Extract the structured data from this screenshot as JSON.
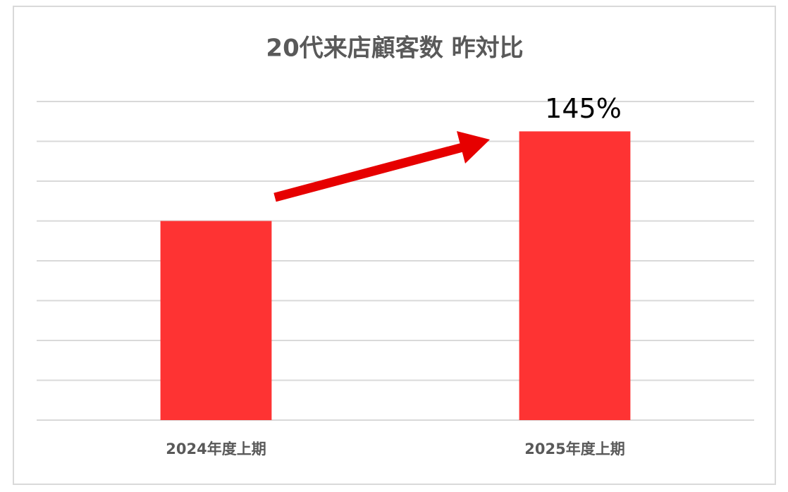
{
  "chart_data": {
    "type": "bar",
    "title": "20代来店顧客数 昨対比",
    "categories": [
      "2024年度上期",
      "2025年度上期"
    ],
    "values": [
      100,
      145
    ],
    "value_labels": [
      null,
      "145%"
    ],
    "color": "#fe3333",
    "ylim": [
      0,
      160
    ],
    "yticks": [
      0,
      20,
      40,
      60,
      80,
      100,
      120,
      140,
      160
    ],
    "grid": true,
    "show_tick_labels": false
  }
}
